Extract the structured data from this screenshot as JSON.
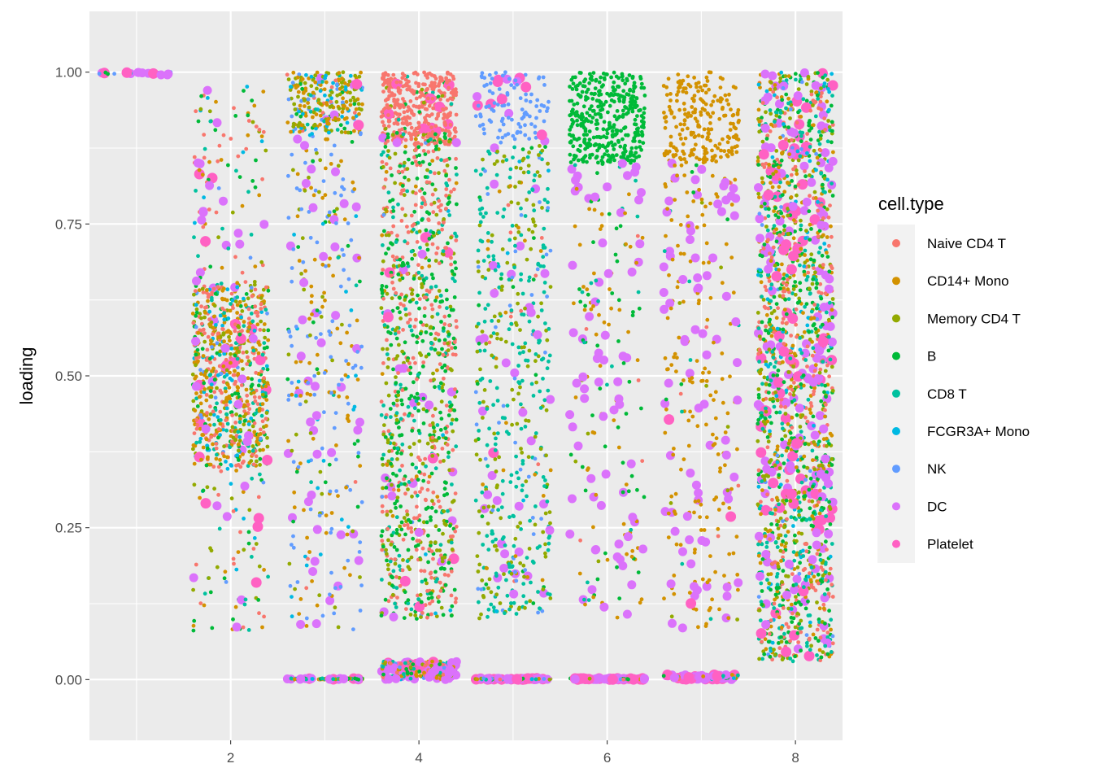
{
  "chart_data": {
    "type": "scatter",
    "subtype": "jitter",
    "title": "",
    "xlabel": "",
    "ylabel": "loading",
    "xlim": [
      0.5,
      8.5
    ],
    "ylim": [
      -0.1,
      1.1
    ],
    "x_ticks": [
      2,
      4,
      6,
      8
    ],
    "x_tick_labels": [
      "2",
      "4",
      "6",
      "8"
    ],
    "y_ticks": [
      0,
      0.25,
      0.5,
      0.75,
      1.0
    ],
    "y_tick_labels": [
      "0.00",
      "0.25",
      "0.50",
      "0.75",
      "1.00"
    ],
    "grid": true,
    "legend": {
      "title": "cell.type",
      "position": "right",
      "entries": [
        {
          "name": "Naive CD4 T",
          "color": "#F8766D"
        },
        {
          "name": "CD14+ Mono",
          "color": "#D39200"
        },
        {
          "name": "Memory CD4 T",
          "color": "#93AA00"
        },
        {
          "name": "B",
          "color": "#00BA38"
        },
        {
          "name": "CD8 T",
          "color": "#00C19F"
        },
        {
          "name": "FCGR3A+ Mono",
          "color": "#00B9E3"
        },
        {
          "name": "NK",
          "color": "#619CFF"
        },
        {
          "name": "DC",
          "color": "#DB72FB"
        },
        {
          "name": "Platelet",
          "color": "#FF61C3"
        }
      ]
    },
    "panel_background": "#EBEBEB",
    "jitter_width": 0.4,
    "groups": [
      {
        "x": 1,
        "description": "loadings near 1.00",
        "levels": [
          {
            "y_min": 0.995,
            "y_max": 1.0,
            "n": 30,
            "mix": [
              0.05,
              0.05,
              0.05,
              0.05,
              0.05,
              0.05,
              0.3,
              0.2,
              0.2
            ]
          }
        ]
      },
      {
        "x": 2,
        "description": "dense band around 0.35-0.65 with spread to 0.1-1.0",
        "levels": [
          {
            "y_min": 0.35,
            "y_max": 0.65,
            "n": 700,
            "mix": [
              0.25,
              0.3,
              0.15,
              0.08,
              0.1,
              0.08,
              0.02,
              0.01,
              0.01
            ]
          },
          {
            "y_min": 0.08,
            "y_max": 0.98,
            "n": 280,
            "mix": [
              0.2,
              0.15,
              0.15,
              0.15,
              0.1,
              0.08,
              0.02,
              0.1,
              0.05
            ]
          }
        ]
      },
      {
        "x": 3,
        "description": "cluster near 1.00, spread downward, band at 0.00",
        "levels": [
          {
            "y_min": 0.9,
            "y_max": 1.0,
            "n": 260,
            "mix": [
              0.05,
              0.3,
              0.3,
              0.05,
              0.05,
              0.15,
              0.05,
              0.02,
              0.03
            ]
          },
          {
            "y_min": 0.08,
            "y_max": 0.9,
            "n": 330,
            "mix": [
              0.02,
              0.25,
              0.1,
              0.05,
              0.03,
              0.1,
              0.3,
              0.15,
              0.0
            ]
          },
          {
            "y_min": 0.0,
            "y_max": 0.002,
            "n": 110,
            "mix": [
              0.1,
              0.1,
              0.1,
              0.2,
              0.2,
              0.1,
              0.05,
              0.1,
              0.05
            ]
          }
        ]
      },
      {
        "x": 4,
        "description": "Naive CD4 T near 1.00, mixed spread, band at 0.00",
        "levels": [
          {
            "y_min": 0.88,
            "y_max": 1.0,
            "n": 380,
            "mix": [
              0.9,
              0.0,
              0.02,
              0.03,
              0.02,
              0.0,
              0.0,
              0.0,
              0.03
            ]
          },
          {
            "y_min": 0.1,
            "y_max": 0.9,
            "n": 1050,
            "mix": [
              0.3,
              0.03,
              0.2,
              0.3,
              0.12,
              0.01,
              0.01,
              0.02,
              0.01
            ]
          },
          {
            "y_min": 0.0,
            "y_max": 0.03,
            "n": 230,
            "mix": [
              0.15,
              0.15,
              0.1,
              0.1,
              0.1,
              0.05,
              0.05,
              0.2,
              0.1
            ]
          }
        ]
      },
      {
        "x": 5,
        "description": "NK near 1.00, CD8 T spread, band at 0.00",
        "levels": [
          {
            "y_min": 0.88,
            "y_max": 1.0,
            "n": 110,
            "mix": [
              0.0,
              0.0,
              0.0,
              0.0,
              0.0,
              0.0,
              0.88,
              0.02,
              0.1
            ]
          },
          {
            "y_min": 0.1,
            "y_max": 0.88,
            "n": 560,
            "mix": [
              0.03,
              0.05,
              0.28,
              0.03,
              0.45,
              0.02,
              0.08,
              0.05,
              0.01
            ]
          },
          {
            "y_min": 0.0,
            "y_max": 0.002,
            "n": 150,
            "mix": [
              0.05,
              0.1,
              0.1,
              0.1,
              0.1,
              0.1,
              0.15,
              0.2,
              0.1
            ]
          }
        ]
      },
      {
        "x": 6,
        "description": "B near 1.00, sparse spread, band at 0.00",
        "levels": [
          {
            "y_min": 0.85,
            "y_max": 1.0,
            "n": 380,
            "mix": [
              0.0,
              0.0,
              0.0,
              1.0,
              0.0,
              0.0,
              0.0,
              0.0,
              0.0
            ]
          },
          {
            "y_min": 0.1,
            "y_max": 0.85,
            "n": 210,
            "mix": [
              0.02,
              0.35,
              0.05,
              0.25,
              0.05,
              0.0,
              0.0,
              0.28,
              0.0
            ]
          },
          {
            "y_min": 0.0,
            "y_max": 0.002,
            "n": 170,
            "mix": [
              0.05,
              0.1,
              0.05,
              0.2,
              0.1,
              0.05,
              0.05,
              0.25,
              0.15
            ]
          }
        ]
      },
      {
        "x": 7,
        "description": "CD14+ Mono near 1.00, sparse spread, band at 0.00",
        "levels": [
          {
            "y_min": 0.85,
            "y_max": 1.0,
            "n": 220,
            "mix": [
              0.0,
              1.0,
              0.0,
              0.0,
              0.0,
              0.0,
              0.0,
              0.0,
              0.0
            ]
          },
          {
            "y_min": 0.08,
            "y_max": 0.85,
            "n": 280,
            "mix": [
              0.03,
              0.55,
              0.05,
              0.03,
              0.03,
              0.0,
              0.0,
              0.3,
              0.01
            ]
          },
          {
            "y_min": 0.0,
            "y_max": 0.008,
            "n": 130,
            "mix": [
              0.1,
              0.1,
              0.05,
              0.1,
              0.1,
              0.05,
              0.05,
              0.3,
              0.15
            ]
          }
        ]
      },
      {
        "x": 8,
        "description": "dense full-range mixture 0.03-1.00",
        "levels": [
          {
            "y_min": 0.03,
            "y_max": 1.0,
            "n": 1800,
            "mix": [
              0.16,
              0.14,
              0.16,
              0.2,
              0.14,
              0.05,
              0.02,
              0.08,
              0.05
            ]
          }
        ]
      }
    ]
  }
}
